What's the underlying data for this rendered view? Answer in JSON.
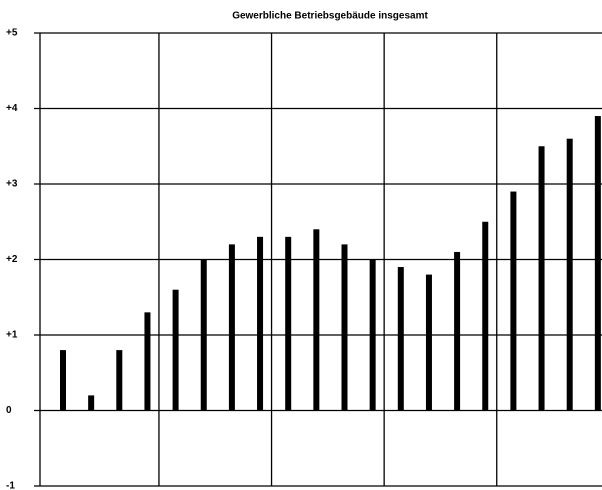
{
  "chart_data": {
    "type": "bar",
    "title": "Gewerbliche Betriebsgebäude insgesamt",
    "categories": [
      null,
      null,
      null,
      null,
      null,
      null,
      null,
      null,
      null,
      null,
      null,
      null,
      null,
      null,
      null,
      null,
      null,
      null,
      null,
      null
    ],
    "values": [
      0.8,
      0.2,
      0.8,
      1.3,
      1.6,
      2.0,
      2.2,
      2.3,
      2.3,
      2.4,
      2.2,
      2.0,
      1.9,
      1.8,
      2.1,
      2.5,
      2.9,
      3.5,
      3.6,
      3.9
    ],
    "color": "#000000",
    "ylim": [
      -1,
      5
    ],
    "yticks": [
      {
        "value": 5,
        "label": "+5"
      },
      {
        "value": 4,
        "label": "+4"
      },
      {
        "value": 3,
        "label": "+3"
      },
      {
        "value": 2,
        "label": "+2"
      },
      {
        "value": 1,
        "label": "+1"
      },
      0,
      -1
    ],
    "grid": true
  }
}
